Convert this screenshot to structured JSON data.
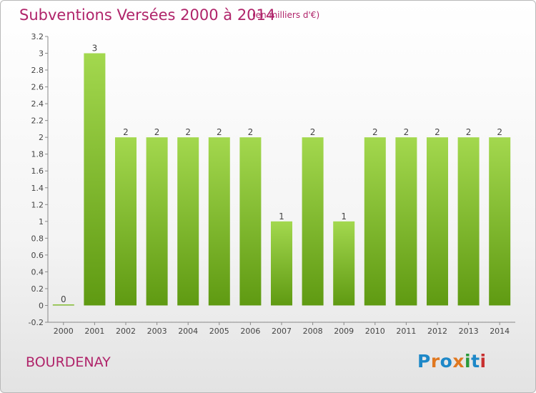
{
  "header": {
    "title": "Subventions Versées 2000 à 2014",
    "subtitle": "(en milliers d'€)"
  },
  "footer": {
    "commune": "BOURDENAY",
    "logo_text": "Proxiti",
    "logo_colors": [
      "#1e88c8",
      "#e07820",
      "#1e88c8",
      "#e07820",
      "#2a9a3a",
      "#1e88c8",
      "#c83030"
    ]
  },
  "colors": {
    "title": "#b0246a",
    "bar_light": "#a3d84e",
    "bar_dark": "#5f9a12",
    "axis": "#888888",
    "text": "#444444"
  },
  "chart_data": {
    "type": "bar",
    "title": "Subventions Versées 2000 à 2014",
    "subtitle": "(en milliers d'€)",
    "categories": [
      "2000",
      "2001",
      "2002",
      "2003",
      "2004",
      "2005",
      "2006",
      "2007",
      "2008",
      "2009",
      "2010",
      "2011",
      "2012",
      "2013",
      "2014"
    ],
    "values": [
      0,
      3,
      2,
      2,
      2,
      2,
      2,
      1,
      2,
      1,
      2,
      2,
      2,
      2,
      2
    ],
    "data_labels": [
      "0",
      "3",
      "2",
      "2",
      "2",
      "2",
      "2",
      "1",
      "2",
      "1",
      "2",
      "2",
      "2",
      "2",
      "2"
    ],
    "y_ticks": [
      "-0.2",
      "0",
      "0.2",
      "0.4",
      "0.6",
      "0.8",
      "1",
      "1.2",
      "1.4",
      "1.6",
      "1.8",
      "2",
      "2.2",
      "2.4",
      "2.6",
      "2.8",
      "3",
      "3.2"
    ],
    "ylim": [
      -0.2,
      3.2
    ],
    "grid": false,
    "legend": "none"
  }
}
